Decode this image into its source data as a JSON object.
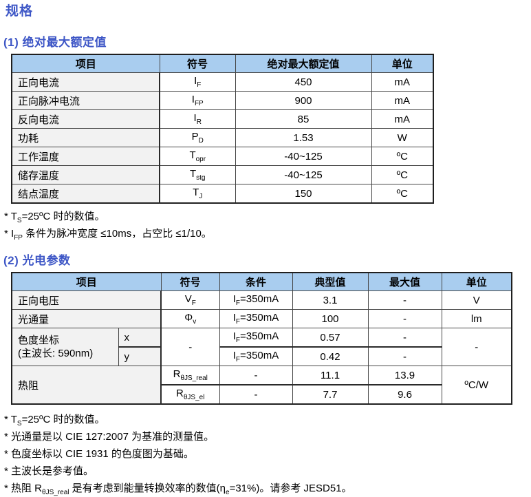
{
  "page": {
    "title": "规格"
  },
  "colors": {
    "accent_blue": "#3D56C6",
    "header_bg": "#A9CDEF",
    "item_col_bg": "#F2F2F2"
  },
  "section1": {
    "heading": "(1) 绝对最大额定值",
    "table": {
      "headers": [
        "项目",
        "符号",
        "绝对最大额定值",
        "单位"
      ],
      "rows": [
        {
          "item": "正向电流",
          "symbol": [
            {
              "t": "I"
            },
            {
              "s": "F"
            }
          ],
          "value": "450",
          "unit": "mA"
        },
        {
          "item": "正向脉冲电流",
          "symbol": [
            {
              "t": "I"
            },
            {
              "s": "FP"
            }
          ],
          "value": "900",
          "unit": "mA"
        },
        {
          "item": "反向电流",
          "symbol": [
            {
              "t": "I"
            },
            {
              "s": "R"
            }
          ],
          "value": "85",
          "unit": "mA"
        },
        {
          "item": "功耗",
          "symbol": [
            {
              "t": "P"
            },
            {
              "s": "D"
            }
          ],
          "value": "1.53",
          "unit": "W"
        },
        {
          "item": "工作温度",
          "symbol": [
            {
              "t": "T"
            },
            {
              "s": "opr"
            }
          ],
          "value": "-40~125",
          "unit": "ºC"
        },
        {
          "item": "储存温度",
          "symbol": [
            {
              "t": "T"
            },
            {
              "s": "stg"
            }
          ],
          "value": "-40~125",
          "unit": "ºC"
        },
        {
          "item": "结点温度",
          "symbol": [
            {
              "t": "T"
            },
            {
              "s": "J"
            }
          ],
          "value": "150",
          "unit": "ºC"
        }
      ]
    },
    "footnotes": [
      [
        {
          "t": "* T"
        },
        {
          "s": "S"
        },
        {
          "t": "=25ºC 时的数值。"
        }
      ],
      [
        {
          "t": "* I"
        },
        {
          "s": "FP"
        },
        {
          "t": " 条件为脉冲宽度 ≤10ms，占空比 ≤1/10。"
        }
      ]
    ]
  },
  "section2": {
    "heading": "(2) 光电参数",
    "table": {
      "headers": [
        "项目",
        "符号",
        "条件",
        "典型值",
        "最大值",
        "单位"
      ],
      "vf": {
        "item": "正向电压",
        "symbol": [
          {
            "t": "V"
          },
          {
            "s": "F"
          }
        ],
        "condition": [
          {
            "t": "I"
          },
          {
            "s": "F"
          },
          {
            "t": "=350mA"
          }
        ],
        "typical": "3.1",
        "max": "-",
        "unit": "V"
      },
      "flux": {
        "item": "光通量",
        "symbol": [
          {
            "t": "Φ"
          },
          {
            "s": "v"
          }
        ],
        "condition": [
          {
            "t": "I"
          },
          {
            "s": "F"
          },
          {
            "t": "=350mA"
          }
        ],
        "typical": "100",
        "max": "-",
        "unit": "lm"
      },
      "chroma": {
        "item_line1": "色度坐标",
        "item_line2": "(主波长: 590nm)",
        "symbol": "-",
        "unit": "-",
        "x": {
          "label": "x",
          "condition": [
            {
              "t": "I"
            },
            {
              "s": "F"
            },
            {
              "t": "=350mA"
            }
          ],
          "typical": "0.57",
          "max": "-"
        },
        "y": {
          "label": "y",
          "condition": [
            {
              "t": "I"
            },
            {
              "s": "F"
            },
            {
              "t": "=350mA"
            }
          ],
          "typical": "0.42",
          "max": "-"
        }
      },
      "thermal": {
        "item": "热阻",
        "unit": "ºC/W",
        "real": {
          "symbol": [
            {
              "t": "R"
            },
            {
              "s": "θJS_real"
            }
          ],
          "condition": "-",
          "typical": "11.1",
          "max": "13.9"
        },
        "el": {
          "symbol": [
            {
              "t": "R"
            },
            {
              "s": "θJS_el"
            }
          ],
          "condition": "-",
          "typical": "7.7",
          "max": "9.6"
        }
      }
    },
    "footnotes": [
      [
        {
          "t": "* T"
        },
        {
          "s": "S"
        },
        {
          "t": "=25ºC 时的数值。"
        }
      ],
      [
        {
          "t": "* 光通量是以 CIE 127:2007 为基准的测量值。"
        }
      ],
      [
        {
          "t": "* 色度坐标以 CIE 1931 的色度图为基础。"
        }
      ],
      [
        {
          "t": "* 主波长是参考值。"
        }
      ],
      [
        {
          "t": "* 热阻 R"
        },
        {
          "s": "θJS_real"
        },
        {
          "t": " 是有考虑到能量转换效率的数值(η"
        },
        {
          "s": "e"
        },
        {
          "t": "=31%)。请参考 JESD51。"
        }
      ]
    ]
  }
}
